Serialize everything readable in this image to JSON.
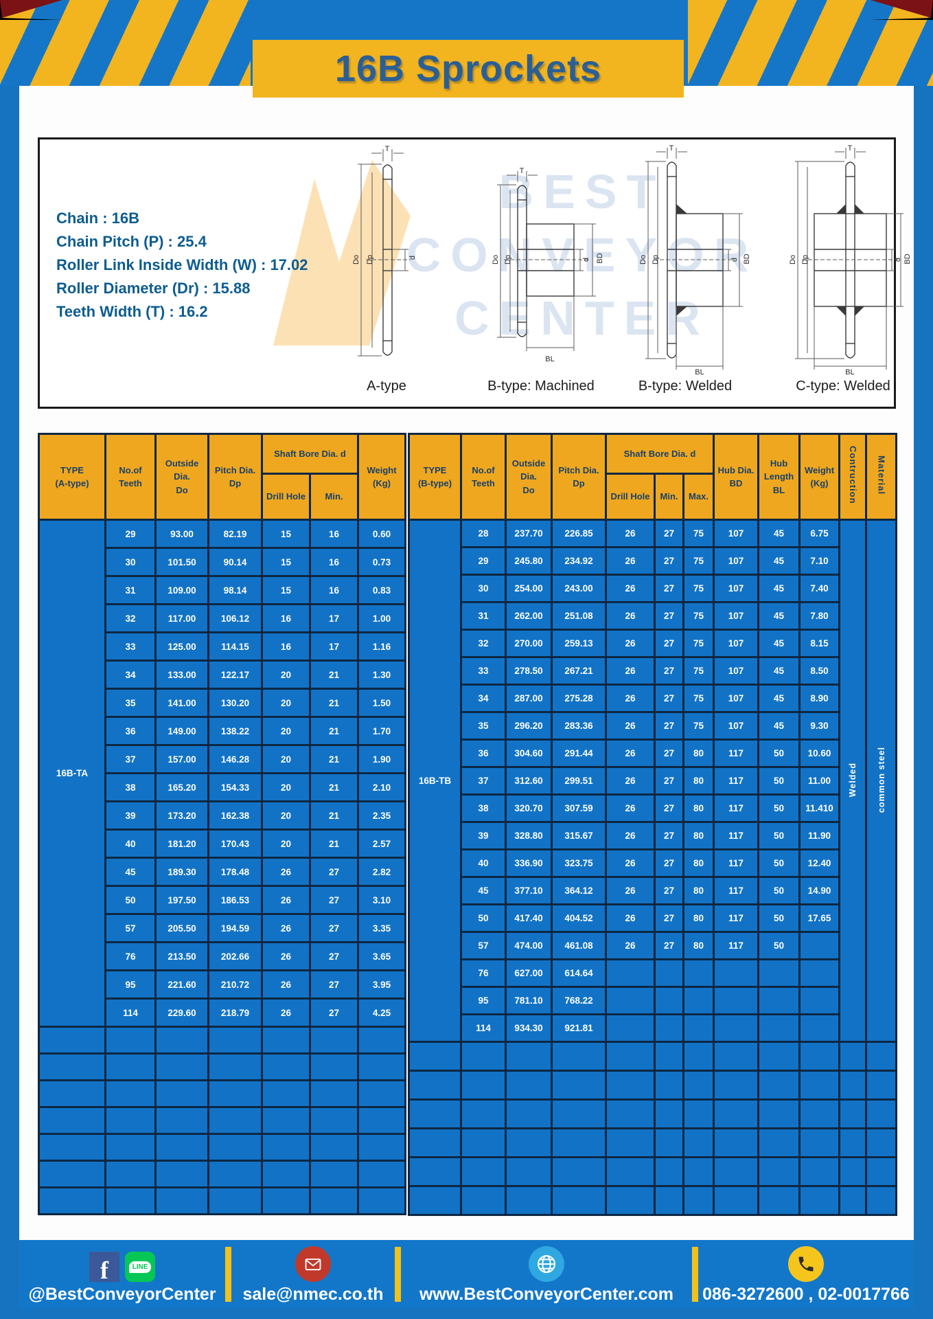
{
  "page": {
    "title": "16B Sprockets"
  },
  "specs": {
    "lines": [
      "Chain  :  16B",
      "Chain Pitch (P)  :  25.4",
      "Roller Link Inside Width (W)  :  17.02",
      "Roller Diameter (Dr)  : 15.88",
      "Teeth Width (T)  :  16.2"
    ]
  },
  "diagram": {
    "watermark": [
      "BEST",
      "CONVEYOR",
      "CENTER"
    ],
    "types": [
      "A-type",
      "B-type: Machined",
      "B-type: Welded",
      "C-type: Welded"
    ],
    "dims": {
      "T": "T",
      "Do": "Do",
      "Dp": "Dp",
      "d": "d",
      "BD": "BD",
      "BL": "BL"
    }
  },
  "table_a": {
    "headers": {
      "type": "TYPE\n(A-type)",
      "teeth": "No.of\nTeeth",
      "outside": "Outside\nDia.\nDo",
      "pitch": "Pitch Dia.\nDp",
      "shaft": "Shaft Bore Dia. d",
      "drill": "Drill Hole",
      "min": "Min.",
      "weight": "Weight\n(Kg)"
    },
    "type_label": "16B-TA",
    "total_cols": 7,
    "empty_rows": 7,
    "rows": [
      [
        "29",
        "93.00",
        "82.19",
        "15",
        "16",
        "0.60"
      ],
      [
        "30",
        "101.50",
        "90.14",
        "15",
        "16",
        "0.73"
      ],
      [
        "31",
        "109.00",
        "98.14",
        "15",
        "16",
        "0.83"
      ],
      [
        "32",
        "117.00",
        "106.12",
        "16",
        "17",
        "1.00"
      ],
      [
        "33",
        "125.00",
        "114.15",
        "16",
        "17",
        "1.16"
      ],
      [
        "34",
        "133.00",
        "122.17",
        "20",
        "21",
        "1.30"
      ],
      [
        "35",
        "141.00",
        "130.20",
        "20",
        "21",
        "1.50"
      ],
      [
        "36",
        "149.00",
        "138.22",
        "20",
        "21",
        "1.70"
      ],
      [
        "37",
        "157.00",
        "146.28",
        "20",
        "21",
        "1.90"
      ],
      [
        "38",
        "165.20",
        "154.33",
        "20",
        "21",
        "2.10"
      ],
      [
        "39",
        "173.20",
        "162.38",
        "20",
        "21",
        "2.35"
      ],
      [
        "40",
        "181.20",
        "170.43",
        "20",
        "21",
        "2.57"
      ],
      [
        "45",
        "189.30",
        "178.48",
        "26",
        "27",
        "2.82"
      ],
      [
        "50",
        "197.50",
        "186.53",
        "26",
        "27",
        "3.10"
      ],
      [
        "57",
        "205.50",
        "194.59",
        "26",
        "27",
        "3.35"
      ],
      [
        "76",
        "213.50",
        "202.66",
        "26",
        "27",
        "3.65"
      ],
      [
        "95",
        "221.60",
        "210.72",
        "26",
        "27",
        "3.95"
      ],
      [
        "114",
        "229.60",
        "218.79",
        "26",
        "27",
        "4.25"
      ]
    ]
  },
  "table_b": {
    "headers": {
      "type": "TYPE\n(B-type)",
      "teeth": "No.of\nTeeth",
      "outside": "Outside\nDia.\nDo",
      "pitch": "Pitch Dia.\nDp",
      "shaft": "Shaft Bore Dia. d",
      "drill": "Drill Hole",
      "min": "Min.",
      "max": "Max.",
      "hub_dia": "Hub Dia.\nBD",
      "hub_len": "Hub\nLength\nBL",
      "weight": "Weight\n(Kg)",
      "construction": "Contruction",
      "material": "Material"
    },
    "type_label": "16B-TB",
    "construction_value": "Welded",
    "material_value": "common steel",
    "total_cols": 12,
    "empty_rows": 6,
    "rows": [
      [
        "28",
        "237.70",
        "226.85",
        "26",
        "27",
        "75",
        "107",
        "45",
        "6.75"
      ],
      [
        "29",
        "245.80",
        "234.92",
        "26",
        "27",
        "75",
        "107",
        "45",
        "7.10"
      ],
      [
        "30",
        "254.00",
        "243.00",
        "26",
        "27",
        "75",
        "107",
        "45",
        "7.40"
      ],
      [
        "31",
        "262.00",
        "251.08",
        "26",
        "27",
        "75",
        "107",
        "45",
        "7.80"
      ],
      [
        "32",
        "270.00",
        "259.13",
        "26",
        "27",
        "75",
        "107",
        "45",
        "8.15"
      ],
      [
        "33",
        "278.50",
        "267.21",
        "26",
        "27",
        "75",
        "107",
        "45",
        "8.50"
      ],
      [
        "34",
        "287.00",
        "275.28",
        "26",
        "27",
        "75",
        "107",
        "45",
        "8.90"
      ],
      [
        "35",
        "296.20",
        "283.36",
        "26",
        "27",
        "75",
        "107",
        "45",
        "9.30"
      ],
      [
        "36",
        "304.60",
        "291.44",
        "26",
        "27",
        "80",
        "117",
        "50",
        "10.60"
      ],
      [
        "37",
        "312.60",
        "299.51",
        "26",
        "27",
        "80",
        "117",
        "50",
        "11.00"
      ],
      [
        "38",
        "320.70",
        "307.59",
        "26",
        "27",
        "80",
        "117",
        "50",
        "11.410"
      ],
      [
        "39",
        "328.80",
        "315.67",
        "26",
        "27",
        "80",
        "117",
        "50",
        "11.90"
      ],
      [
        "40",
        "336.90",
        "323.75",
        "26",
        "27",
        "80",
        "117",
        "50",
        "12.40"
      ],
      [
        "45",
        "377.10",
        "364.12",
        "26",
        "27",
        "80",
        "117",
        "50",
        "14.90"
      ],
      [
        "50",
        "417.40",
        "404.52",
        "26",
        "27",
        "80",
        "117",
        "50",
        "17.65"
      ],
      [
        "57",
        "474.00",
        "461.08",
        "26",
        "27",
        "80",
        "117",
        "50",
        ""
      ],
      [
        "76",
        "627.00",
        "614.64",
        "",
        "",
        "",
        "",
        "",
        ""
      ],
      [
        "95",
        "781.10",
        "768.22",
        "",
        "",
        "",
        "",
        "",
        ""
      ],
      [
        "114",
        "934.30",
        "921.81",
        "",
        "",
        "",
        "",
        "",
        ""
      ]
    ]
  },
  "footer": {
    "social_handle": "@BestConveyorCenter",
    "line_label": "LINE",
    "facebook_label": "f",
    "email": "sale@nmec.co.th",
    "website": "www.BestConveyorCenter.com",
    "phones": "086-3272600 , 02-0017766"
  },
  "colors": {
    "frame_blue": "#1576c8",
    "accent_yellow": "#f2b41f",
    "header_yellow": "#efa71f",
    "table_blue": "#1273c6",
    "grid_dark": "#0d2742",
    "title_text": "#2b5f94",
    "spec_text": "#0d5c90",
    "facebook_blue": "#3b5998",
    "line_green": "#06c755",
    "envelope_red": "#c0392b",
    "globe_blue": "#2fa8e1",
    "phone_yellow": "#f6c51c"
  }
}
